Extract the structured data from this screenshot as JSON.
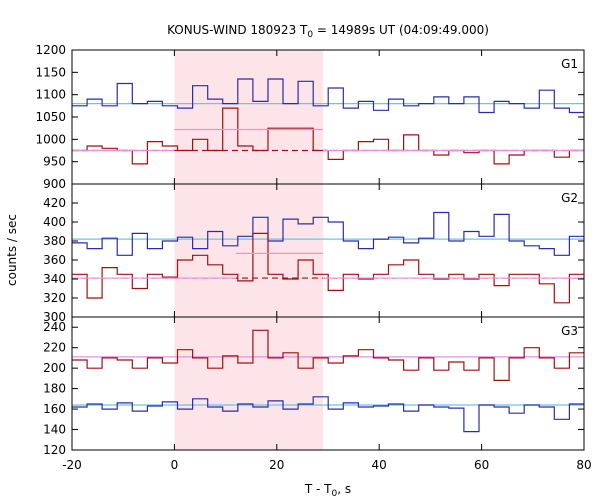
{
  "chart_data": {
    "type": "line",
    "title": {
      "prefix": "KONUS-WIND 180923 T",
      "sub": "0",
      "suffix": " = 14989s UT (04:09:49.000)"
    },
    "xlabel": {
      "prefix": "T - T",
      "sub": "0",
      "suffix": ", s"
    },
    "ylabel": "counts / sec",
    "xlim": [
      -20,
      80
    ],
    "x_ticks": [
      -20,
      0,
      20,
      40,
      60,
      80
    ],
    "x_tick_labels": [
      "-20",
      "0",
      "20",
      "40",
      "60",
      "80"
    ],
    "shaded_interval": [
      0,
      29
    ],
    "bin_width": 2.944,
    "x_start": -20,
    "colors": {
      "blue": "#2b2bb0",
      "red": "#a01010",
      "cyan": "#66c8e6",
      "pink": "#e890e0",
      "shade": "#fde4e8"
    },
    "panels": [
      {
        "label": "G1",
        "ylim": [
          900,
          1200
        ],
        "y_ticks": [
          900,
          950,
          1000,
          1050,
          1100,
          1150,
          1200
        ],
        "y_tick_labels": [
          "900",
          "950",
          "1000",
          "1050",
          "1100",
          "1150",
          "1200"
        ],
        "series": [
          {
            "color": "blue",
            "values": [
              1075,
              1090,
              1075,
              1125,
              1080,
              1085,
              1075,
              1070,
              1120,
              1090,
              1080,
              1135,
              1085,
              1135,
              1080,
              1130,
              1075,
              1115,
              1070,
              1085,
              1065,
              1090,
              1075,
              1080,
              1095,
              1080,
              1095,
              1060,
              1085,
              1080,
              1070,
              1110,
              1070,
              1060
            ]
          },
          {
            "color": "red",
            "values": [
              975,
              985,
              980,
              975,
              945,
              995,
              985,
              975,
              1000,
              975,
              1070,
              985,
              975,
              1025,
              1025,
              1025,
              975,
              955,
              975,
              995,
              1000,
              975,
              1010,
              975,
              965,
              975,
              970,
              975,
              945,
              965,
              975,
              975,
              960,
              975
            ]
          }
        ],
        "background": [
          {
            "color": "cyan",
            "style": "solid",
            "y": 1080
          },
          {
            "color": "red",
            "style": "dash",
            "y": 975
          }
        ],
        "interval_lines": [
          {
            "color": "pink",
            "y": 975,
            "x0": -20,
            "x1": 0
          },
          {
            "color": "pink",
            "y": 1022,
            "x0": 0,
            "x1": 29
          },
          {
            "color": "pink",
            "y": 975,
            "x0": 29,
            "x1": 80
          }
        ]
      },
      {
        "label": "G2",
        "ylim": [
          300,
          440
        ],
        "y_ticks": [
          300,
          320,
          340,
          360,
          380,
          400,
          420
        ],
        "y_tick_labels": [
          "300",
          "320",
          "340",
          "360",
          "380",
          "400",
          "420"
        ],
        "series": [
          {
            "color": "blue",
            "values": [
              378,
              372,
              383,
              365,
              388,
              372,
              380,
              384,
              372,
              390,
              375,
              385,
              405,
              380,
              403,
              398,
              405,
              400,
              380,
              372,
              382,
              384,
              378,
              383,
              410,
              380,
              390,
              385,
              408,
              380,
              375,
              372,
              365,
              385
            ]
          },
          {
            "color": "red",
            "values": [
              345,
              320,
              352,
              345,
              330,
              345,
              342,
              360,
              365,
              355,
              345,
              338,
              388,
              345,
              340,
              360,
              345,
              328,
              345,
              340,
              345,
              355,
              360,
              345,
              340,
              345,
              340,
              345,
              333,
              345,
              345,
              335,
              315,
              345
            ]
          }
        ],
        "background": [
          {
            "color": "cyan",
            "style": "solid",
            "y": 382
          },
          {
            "color": "red",
            "style": "dash",
            "y": 341
          }
        ],
        "interval_lines": [
          {
            "color": "pink",
            "y": 341,
            "x0": -20,
            "x1": 12
          },
          {
            "color": "pink",
            "y": 367,
            "x0": 12,
            "x1": 20
          },
          {
            "color": "pink",
            "y": 367,
            "x0": 20,
            "x1": 29
          },
          {
            "color": "pink",
            "y": 341,
            "x0": 29,
            "x1": 80
          }
        ]
      },
      {
        "label": "G3",
        "ylim": [
          120,
          250
        ],
        "y_ticks": [
          120,
          140,
          160,
          180,
          200,
          220,
          240
        ],
        "y_tick_labels": [
          "120",
          "140",
          "160",
          "180",
          "200",
          "220",
          "240"
        ],
        "series": [
          {
            "color": "blue",
            "values": [
              162,
              165,
              160,
              166,
              158,
              163,
              167,
              160,
              170,
              162,
              158,
              165,
              162,
              168,
              160,
              165,
              172,
              160,
              166,
              162,
              163,
              165,
              158,
              164,
              162,
              161,
              138,
              164,
              162,
              156,
              164,
              162,
              150,
              165
            ]
          },
          {
            "color": "red",
            "values": [
              208,
              200,
              210,
              208,
              200,
              210,
              205,
              218,
              210,
              200,
              212,
              205,
              237,
              210,
              215,
              200,
              210,
              205,
              212,
              218,
              210,
              208,
              198,
              210,
              198,
              206,
              198,
              210,
              188,
              210,
              220,
              210,
              200,
              215
            ]
          }
        ],
        "background": [
          {
            "color": "cyan",
            "style": "solid",
            "y": 164
          },
          {
            "color": "pink",
            "style": "solid",
            "y": 211
          }
        ],
        "interval_lines": []
      }
    ]
  }
}
